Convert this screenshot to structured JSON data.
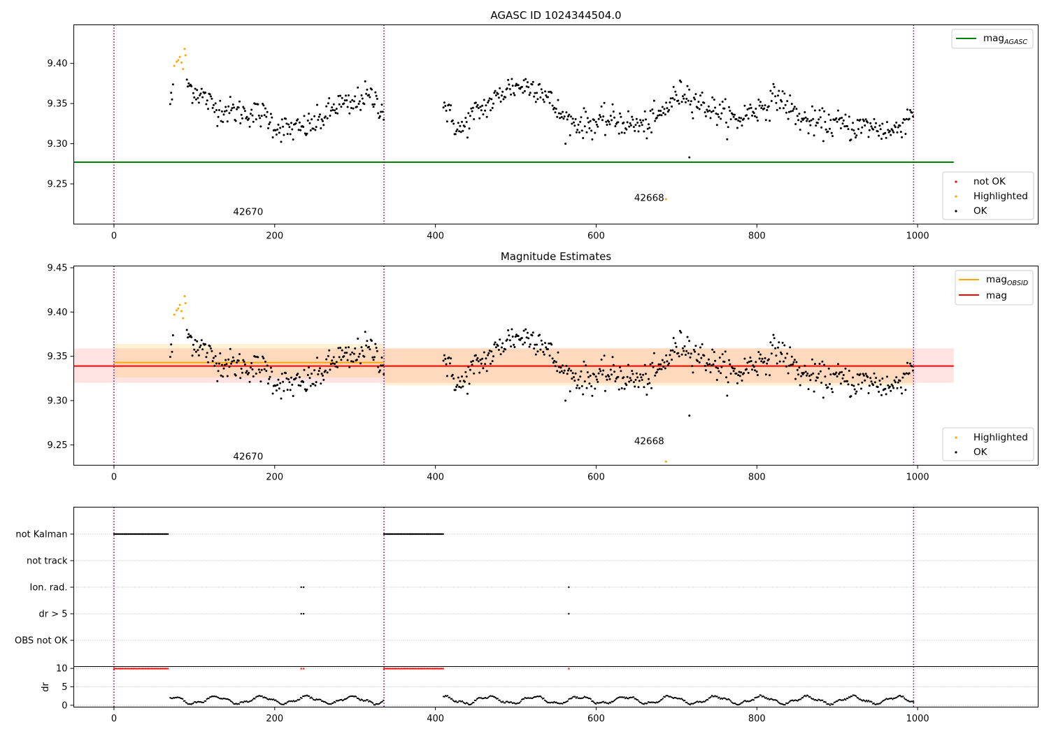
{
  "chart_data": [
    {
      "type": "scatter",
      "title": "AGASC ID 1024344504.0",
      "xlabel": "",
      "ylabel": "",
      "xlim": [
        -50,
        1150
      ],
      "ylim": [
        9.2,
        9.448
      ],
      "xticks": [
        0,
        200,
        400,
        600,
        800,
        1000
      ],
      "yticks": [
        9.25,
        9.3,
        9.35,
        9.4
      ],
      "ytick_labels": [
        "9.25",
        "9.30",
        "9.35",
        "9.40"
      ],
      "obsid_boundaries": [
        0,
        336,
        995
      ],
      "obsid_labels": [
        {
          "x": 167,
          "y": 9.2115,
          "text": "42670"
        },
        {
          "x": 666,
          "y": 9.2285,
          "text": "42668"
        }
      ],
      "mag_agasc": 9.277,
      "line_legend": [
        {
          "name": "mag",
          "sub": "AGASC",
          "color": "#008000"
        }
      ],
      "point_legend": [
        {
          "name": "not OK",
          "color": "#ff0000"
        },
        {
          "name": "Highlighted",
          "color": "#ffa500"
        },
        {
          "name": "OK",
          "color": "#000000"
        }
      ],
      "highlighted_points": [
        [
          75,
          9.397
        ],
        [
          78,
          9.402
        ],
        [
          80,
          9.404
        ],
        [
          82,
          9.408
        ],
        [
          84,
          9.401
        ],
        [
          86,
          9.393
        ],
        [
          88,
          9.418
        ],
        [
          89,
          9.41
        ],
        [
          687,
          9.231
        ]
      ],
      "outlier_points": [
        [
          716,
          9.283
        ]
      ]
    },
    {
      "type": "scatter",
      "title": "Magnitude Estimates",
      "xlabel": "",
      "ylabel": "",
      "xlim": [
        -50,
        1150
      ],
      "ylim": [
        9.227,
        9.452
      ],
      "xticks": [
        0,
        200,
        400,
        600,
        800,
        1000
      ],
      "yticks": [
        9.25,
        9.3,
        9.35,
        9.4,
        9.45
      ],
      "ytick_labels": [
        "9.25",
        "9.30",
        "9.35",
        "9.40",
        "9.45"
      ],
      "obsid_boundaries": [
        0,
        336,
        995
      ],
      "obsid_labels": [
        {
          "x": 167,
          "y": 9.2335,
          "text": "42670"
        },
        {
          "x": 666,
          "y": 9.2505,
          "text": "42668"
        }
      ],
      "mag": 9.339,
      "mag_band": [
        9.32,
        9.359
      ],
      "mag_obsid_segments": [
        {
          "x0": 0,
          "x1": 336,
          "value": 9.343,
          "band": [
            9.326,
            9.364
          ]
        },
        {
          "x0": 336,
          "x1": 995,
          "value": 9.339,
          "band": [
            9.317,
            9.359
          ]
        }
      ],
      "line_legend": [
        {
          "name": "mag",
          "sub": "OBSID",
          "color": "#ffa500"
        },
        {
          "name": "mag",
          "sub": "",
          "color": "#ff0000"
        }
      ],
      "point_legend": [
        {
          "name": "Highlighted",
          "color": "#ffa500"
        },
        {
          "name": "OK",
          "color": "#000000"
        }
      ]
    },
    {
      "type": "scatter",
      "title": "",
      "xlim": [
        -50,
        1150
      ],
      "xticks": [
        0,
        200,
        400,
        600,
        800,
        1000
      ],
      "flag_rows": [
        "not Kalman",
        "not track",
        "Ion. rad.",
        "dr > 5",
        "OBS not OK"
      ],
      "flag_segments": [
        {
          "row": "not Kalman",
          "x0": 0,
          "x1": 68
        },
        {
          "row": "not Kalman",
          "x0": 336,
          "x1": 410
        }
      ],
      "flag_points": [
        {
          "row": "Ion. rad.",
          "x": [
            233,
            236,
            566
          ]
        },
        {
          "row": "dr > 5",
          "x": [
            233,
            236,
            566
          ]
        }
      ],
      "dr": {
        "ylabel": "dr",
        "yticks": [
          0,
          5,
          10
        ],
        "ylim": [
          -0.5,
          10.5
        ],
        "clipped_value": 10,
        "clipped_segments": [
          [
            0,
            68
          ],
          [
            336,
            410
          ]
        ],
        "clipped_points": [
          233,
          236,
          566
        ]
      }
    }
  ]
}
